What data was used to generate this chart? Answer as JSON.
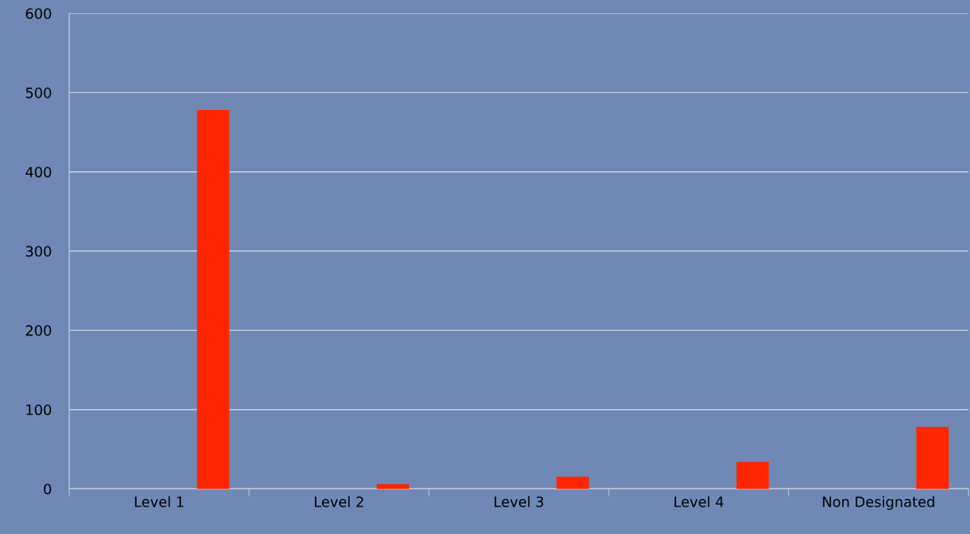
{
  "chart_data": {
    "type": "bar",
    "categories": [
      "Level 1",
      "Level 2",
      "Level 3",
      "Level 4",
      "Non Designated"
    ],
    "values": [
      478,
      6,
      15,
      34,
      78
    ],
    "color": "#ff2600",
    "ylim": [
      0,
      600
    ],
    "yticks": [
      0,
      100,
      200,
      300,
      400,
      500,
      600
    ],
    "grid": "y",
    "legend": false
  }
}
